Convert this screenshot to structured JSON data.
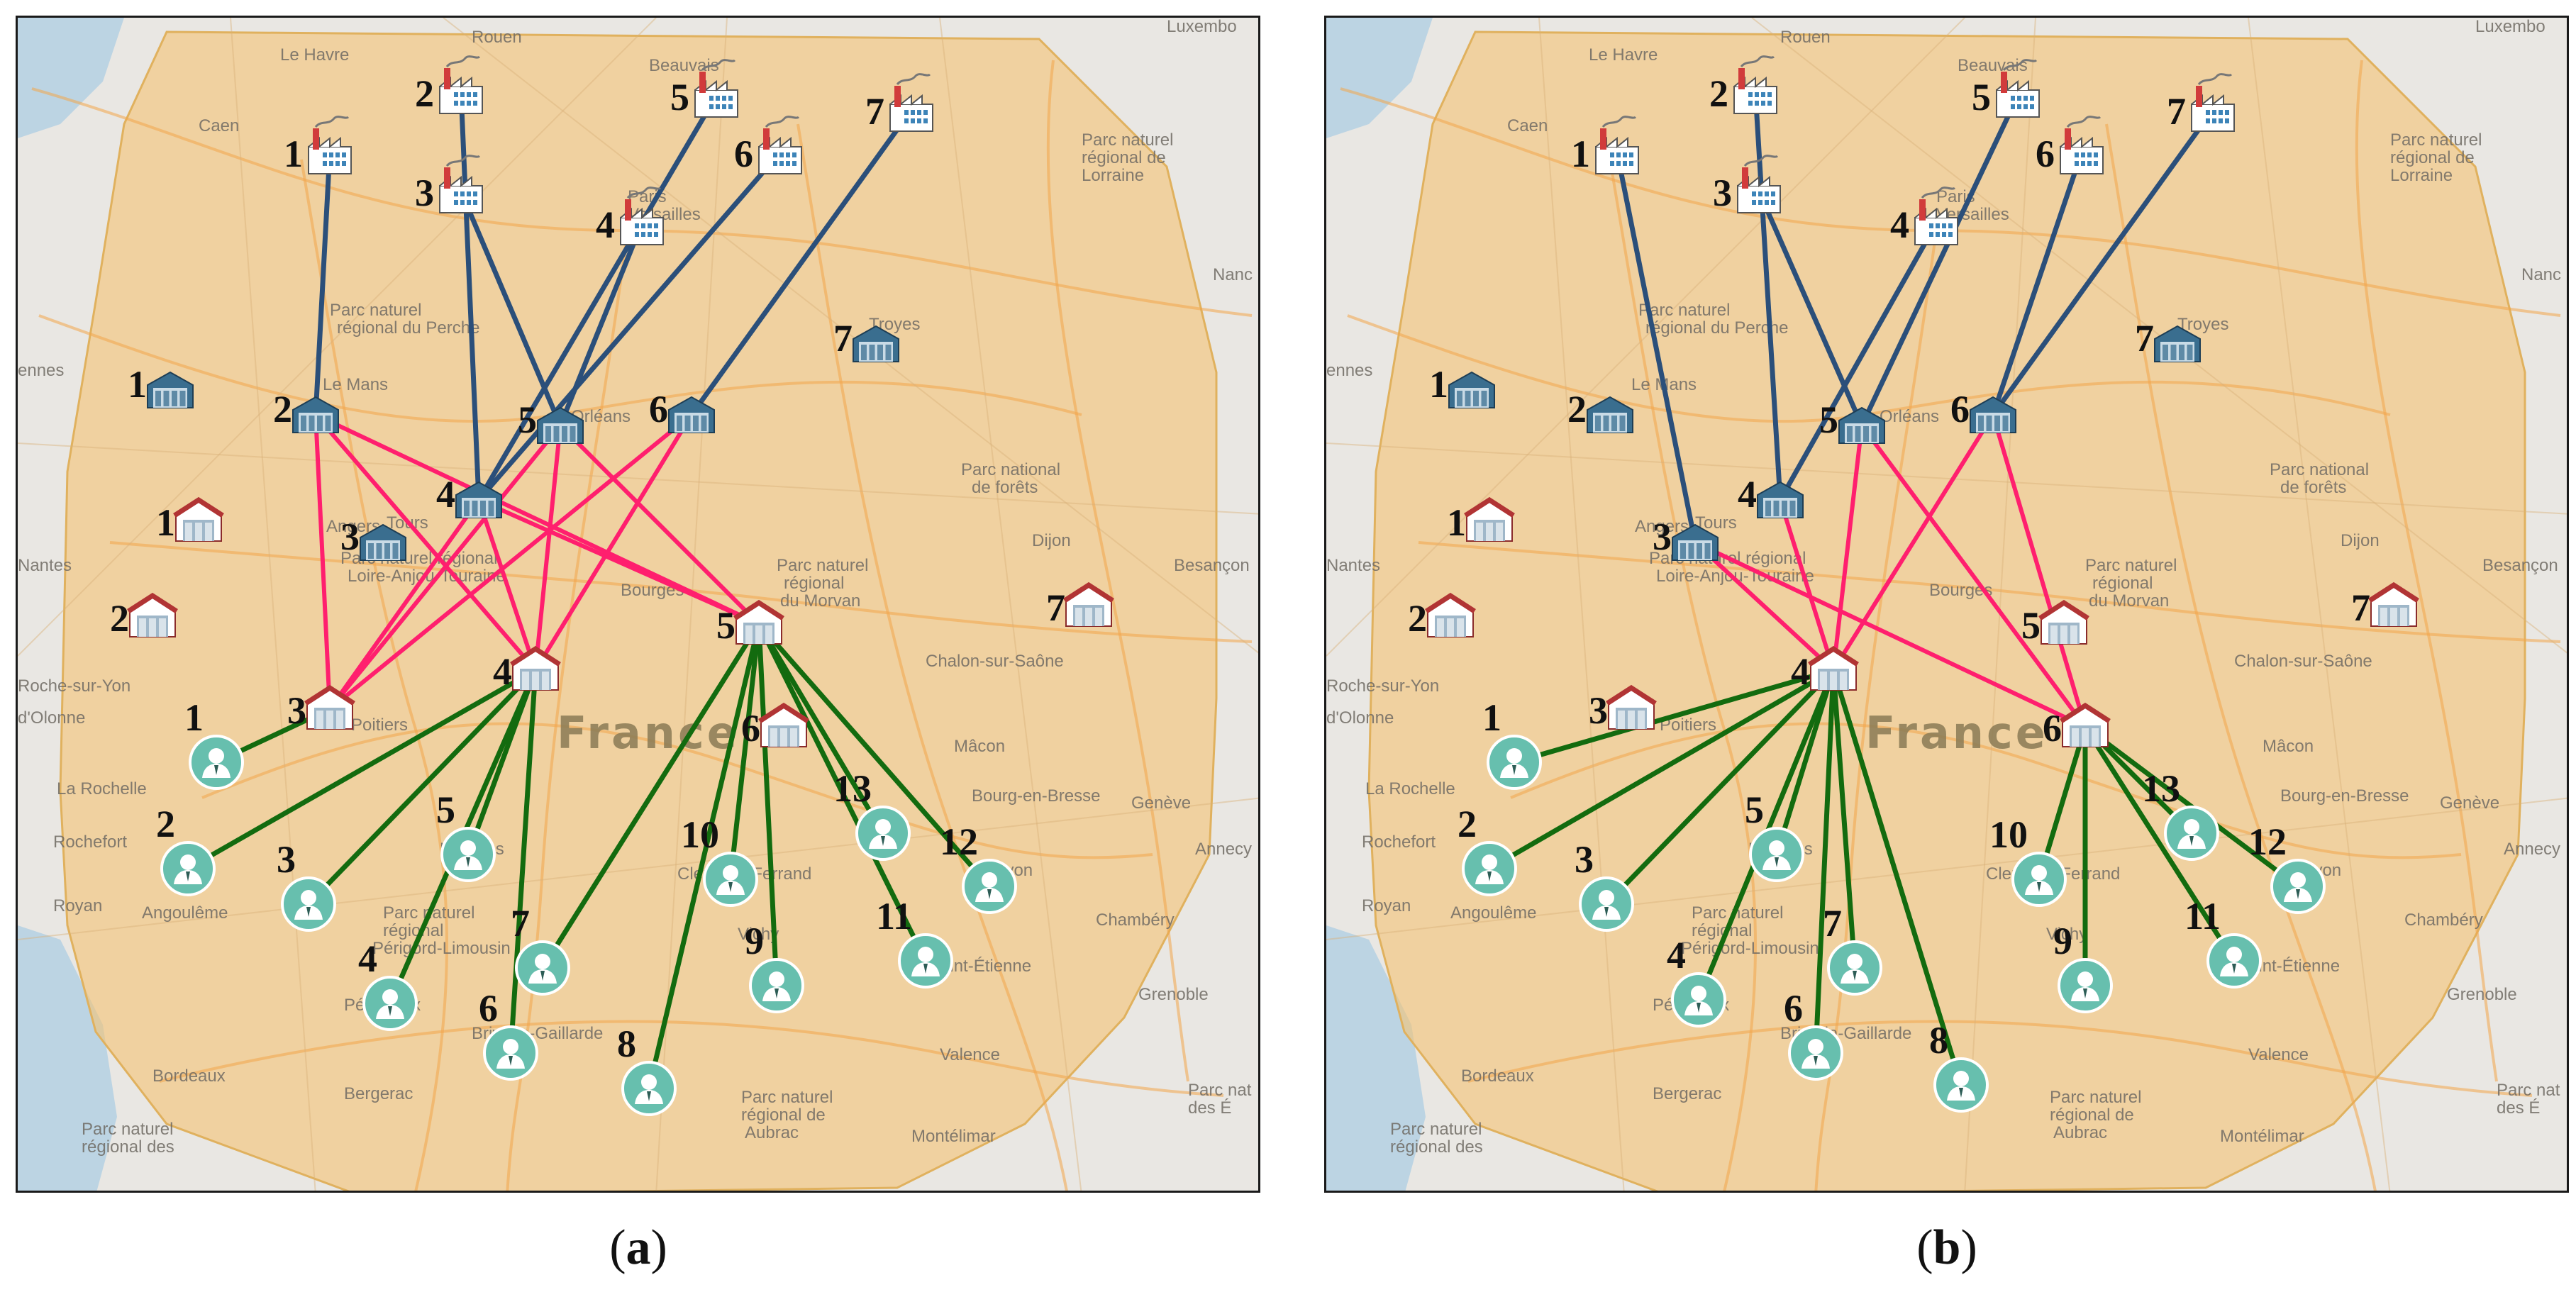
{
  "colors": {
    "factory_to_warehouse": "#2b4f7a",
    "warehouse_to_store": "#ff1f6e",
    "store_to_customer": "#136b0f",
    "region_fill": "#f4c477",
    "map_background": "#e9e7e3",
    "customer_icon": "#67bfae"
  },
  "icons": {
    "factory": "factory-icon",
    "warehouse": "warehouse-icon",
    "store": "store-icon",
    "customer": "customer-icon"
  },
  "map_labels": [
    {
      "text": "Le Havre"
    },
    {
      "text": "Rouen"
    },
    {
      "text": "Beauvais"
    },
    {
      "text": "Luxembo"
    },
    {
      "text": "Caen"
    },
    {
      "text": "Paris"
    },
    {
      "text": "Versailles"
    },
    {
      "text": "Parc naturel"
    },
    {
      "text": "régional de"
    },
    {
      "text": "Lorraine"
    },
    {
      "text": "Nanc"
    },
    {
      "text": "Parc naturel"
    },
    {
      "text": "régional du Perche"
    },
    {
      "text": "Le Mans"
    },
    {
      "text": "Troyes"
    },
    {
      "text": "ennes"
    },
    {
      "text": "Orléans"
    },
    {
      "text": "Tours"
    },
    {
      "text": "Angers"
    },
    {
      "text": "Parc national"
    },
    {
      "text": "de forêts"
    },
    {
      "text": "Nantes"
    },
    {
      "text": "Parc naturel régional"
    },
    {
      "text": "Loire-Anjou-Touraine"
    },
    {
      "text": "Parc naturel"
    },
    {
      "text": "régional"
    },
    {
      "text": "du Morvan"
    },
    {
      "text": "Dijon"
    },
    {
      "text": "Besançon"
    },
    {
      "text": "Bourges"
    },
    {
      "text": "Roche-sur-Yon"
    },
    {
      "text": "Chalon-sur-Saône"
    },
    {
      "text": "d'Olonne"
    },
    {
      "text": "France"
    },
    {
      "text": "Mâcon"
    },
    {
      "text": "La Rochelle"
    },
    {
      "text": "Poitiers"
    },
    {
      "text": "Bourg-en-Bresse"
    },
    {
      "text": "Genève"
    },
    {
      "text": "Rochefort"
    },
    {
      "text": "Limoges"
    },
    {
      "text": "Clermont-Ferrand"
    },
    {
      "text": "Lyon"
    },
    {
      "text": "Annecy"
    },
    {
      "text": "Royan"
    },
    {
      "text": "Angoulême"
    },
    {
      "text": "Parc naturel"
    },
    {
      "text": "régional"
    },
    {
      "text": "Périgord-Limousin"
    },
    {
      "text": "Chambéry"
    },
    {
      "text": "Vichy"
    },
    {
      "text": "Saint-Étienne"
    },
    {
      "text": "Brive-la-Gaillarde"
    },
    {
      "text": "Périgueux"
    },
    {
      "text": "Grenoble"
    },
    {
      "text": "Bordeaux"
    },
    {
      "text": "Bergerac"
    },
    {
      "text": "Valence"
    },
    {
      "text": "Parc naturel"
    },
    {
      "text": "régional des"
    },
    {
      "text": "Montélimar"
    },
    {
      "text": "Parc naturel"
    },
    {
      "text": "régional de"
    },
    {
      "text": "Aubrac"
    },
    {
      "text": "Parc nat"
    },
    {
      "text": "des É"
    }
  ],
  "panels": [
    {
      "caption_prefix": "(",
      "caption_letter": "a",
      "caption_suffix": ")",
      "factories": [
        {
          "label": "1"
        },
        {
          "label": "2"
        },
        {
          "label": "3"
        },
        {
          "label": "4"
        },
        {
          "label": "5"
        },
        {
          "label": "6"
        },
        {
          "label": "7"
        }
      ],
      "warehouses": [
        {
          "label": "1"
        },
        {
          "label": "2"
        },
        {
          "label": "3"
        },
        {
          "label": "4"
        },
        {
          "label": "5"
        },
        {
          "label": "6"
        },
        {
          "label": "7"
        }
      ],
      "stores": [
        {
          "label": "1"
        },
        {
          "label": "2"
        },
        {
          "label": "3"
        },
        {
          "label": "4"
        },
        {
          "label": "5"
        },
        {
          "label": "6"
        },
        {
          "label": "7"
        }
      ],
      "customers": [
        {
          "label": "1"
        },
        {
          "label": "2"
        },
        {
          "label": "3"
        },
        {
          "label": "4"
        },
        {
          "label": "5"
        },
        {
          "label": "6"
        },
        {
          "label": "7"
        },
        {
          "label": "8"
        },
        {
          "label": "9"
        },
        {
          "label": "10"
        },
        {
          "label": "11"
        },
        {
          "label": "12"
        },
        {
          "label": "13"
        }
      ],
      "factory_links": [
        [
          1,
          2
        ],
        [
          2,
          4
        ],
        [
          3,
          5
        ],
        [
          4,
          5
        ],
        [
          5,
          4
        ],
        [
          6,
          4
        ],
        [
          7,
          6
        ]
      ],
      "warehouse_links": [
        [
          2,
          3
        ],
        [
          2,
          4
        ],
        [
          2,
          5
        ],
        [
          4,
          3
        ],
        [
          4,
          4
        ],
        [
          4,
          5
        ],
        [
          5,
          3
        ],
        [
          5,
          4
        ],
        [
          5,
          5
        ],
        [
          6,
          3
        ],
        [
          6,
          4
        ]
      ],
      "customer_links": [
        [
          3,
          1
        ],
        [
          4,
          2
        ],
        [
          4,
          3
        ],
        [
          4,
          4
        ],
        [
          4,
          5
        ],
        [
          4,
          6
        ],
        [
          5,
          7
        ],
        [
          5,
          8
        ],
        [
          5,
          9
        ],
        [
          5,
          10
        ],
        [
          5,
          11
        ],
        [
          5,
          12
        ],
        [
          5,
          13
        ]
      ]
    },
    {
      "caption_prefix": "(",
      "caption_letter": "b",
      "caption_suffix": ")",
      "factories": [
        {
          "label": "1"
        },
        {
          "label": "2"
        },
        {
          "label": "3"
        },
        {
          "label": "4"
        },
        {
          "label": "5"
        },
        {
          "label": "6"
        },
        {
          "label": "7"
        }
      ],
      "warehouses": [
        {
          "label": "1"
        },
        {
          "label": "2"
        },
        {
          "label": "3"
        },
        {
          "label": "4"
        },
        {
          "label": "5"
        },
        {
          "label": "6"
        },
        {
          "label": "7"
        }
      ],
      "stores": [
        {
          "label": "1"
        },
        {
          "label": "2"
        },
        {
          "label": "3"
        },
        {
          "label": "4"
        },
        {
          "label": "5"
        },
        {
          "label": "6"
        },
        {
          "label": "7"
        }
      ],
      "customers": [
        {
          "label": "1"
        },
        {
          "label": "2"
        },
        {
          "label": "3"
        },
        {
          "label": "4"
        },
        {
          "label": "5"
        },
        {
          "label": "6"
        },
        {
          "label": "7"
        },
        {
          "label": "8"
        },
        {
          "label": "9"
        },
        {
          "label": "10"
        },
        {
          "label": "11"
        },
        {
          "label": "12"
        },
        {
          "label": "13"
        }
      ],
      "factory_links": [
        [
          1,
          3
        ],
        [
          2,
          4
        ],
        [
          3,
          5
        ],
        [
          4,
          4
        ],
        [
          5,
          5
        ],
        [
          6,
          6
        ],
        [
          7,
          6
        ]
      ],
      "warehouse_links": [
        [
          3,
          4
        ],
        [
          3,
          6
        ],
        [
          4,
          4
        ],
        [
          5,
          4
        ],
        [
          5,
          6
        ],
        [
          6,
          4
        ],
        [
          6,
          6
        ]
      ],
      "customer_links": [
        [
          4,
          1
        ],
        [
          4,
          2
        ],
        [
          4,
          3
        ],
        [
          4,
          4
        ],
        [
          4,
          5
        ],
        [
          4,
          6
        ],
        [
          4,
          7
        ],
        [
          4,
          8
        ],
        [
          6,
          9
        ],
        [
          6,
          10
        ],
        [
          6,
          11
        ],
        [
          6,
          12
        ],
        [
          6,
          13
        ]
      ]
    }
  ]
}
